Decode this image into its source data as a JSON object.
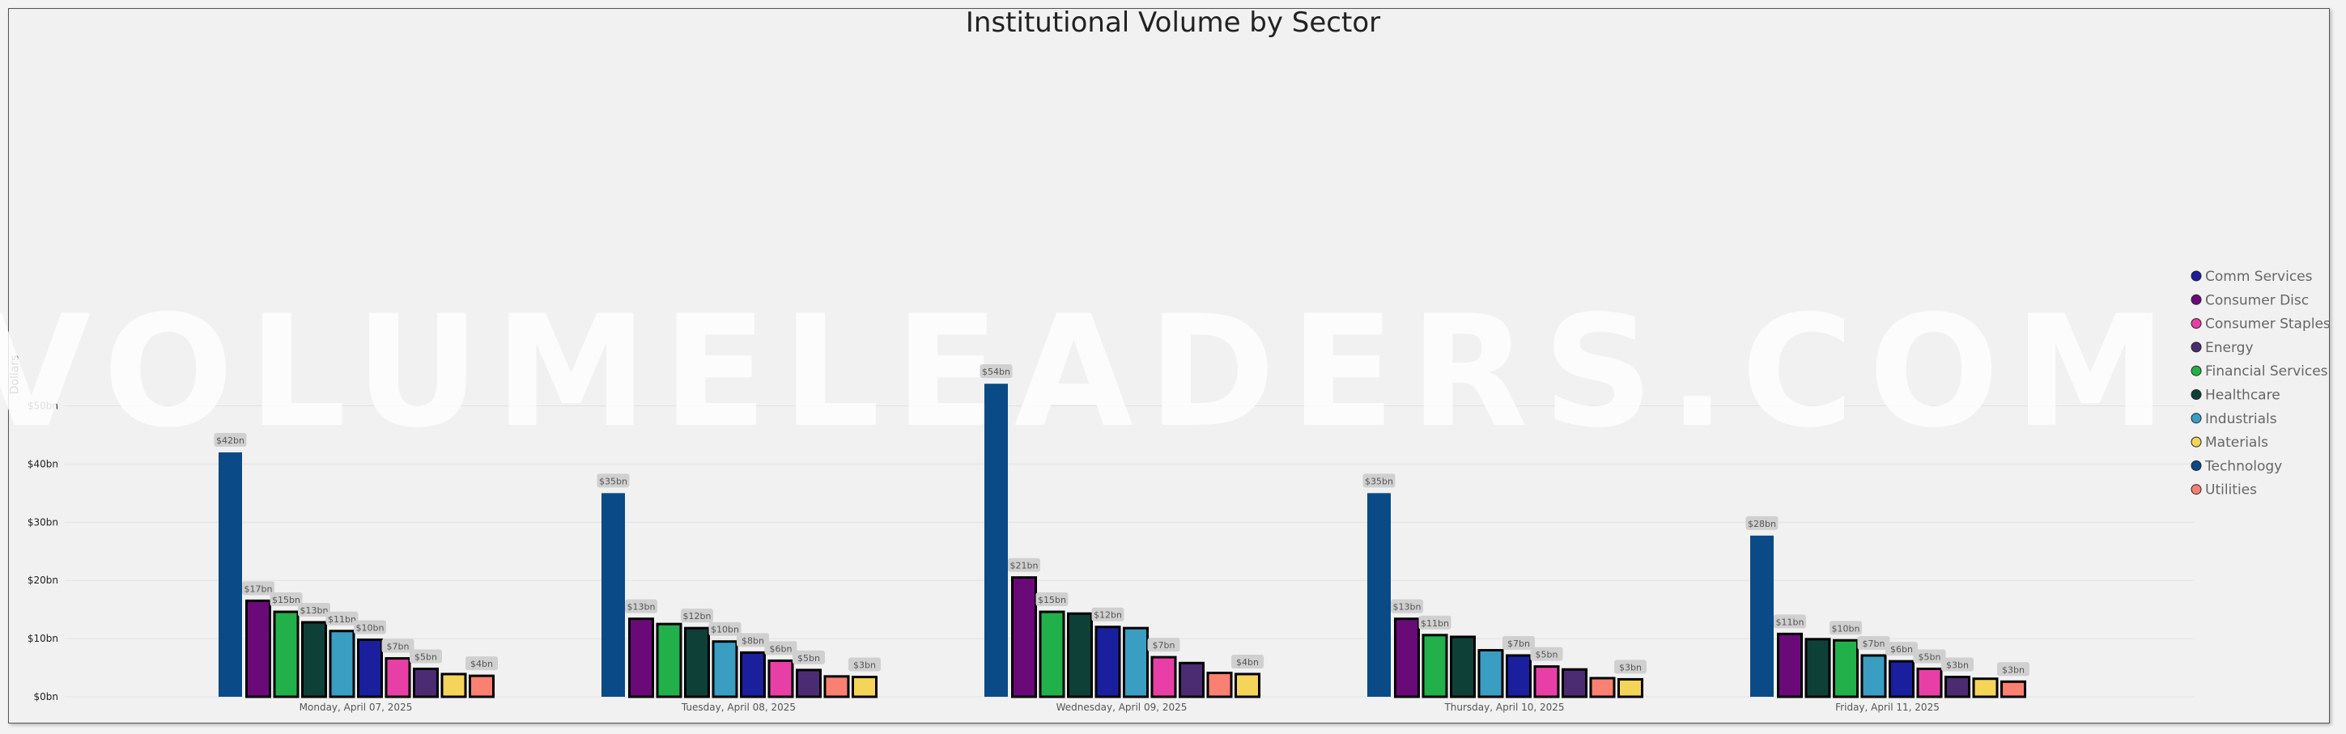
{
  "chart_data": {
    "type": "bar",
    "title": "Institutional Volume by Sector",
    "ylabel": "Dollars",
    "xlabel": "",
    "ylim": [
      0,
      55
    ],
    "yticks": [
      "$0bn",
      "$10bn",
      "$20bn",
      "$30bn",
      "$40bn",
      "$50bn"
    ],
    "categories": [
      "Monday, April 07, 2025",
      "Tuesday, April 08, 2025",
      "Wednesday, April 09, 2025",
      "Thursday, April 10, 2025",
      "Friday, April 11, 2025"
    ],
    "legend_position": "right",
    "watermark": "VOLUMELEADERS.COM",
    "days": [
      {
        "bars": [
          {
            "sector": "Technology",
            "value": 42,
            "label": "$42bn"
          },
          {
            "sector": "Consumer Disc",
            "value": 16.5,
            "label": "$17bn"
          },
          {
            "sector": "Financial Services",
            "value": 14.6,
            "label": "$15bn"
          },
          {
            "sector": "Healthcare",
            "value": 12.8,
            "label": "$13bn"
          },
          {
            "sector": "Industrials",
            "value": 11.3,
            "label": "$11bn"
          },
          {
            "sector": "Comm Services",
            "value": 9.8,
            "label": "$10bn"
          },
          {
            "sector": "Consumer Staples",
            "value": 6.6,
            "label": "$7bn"
          },
          {
            "sector": "Energy",
            "value": 4.8,
            "label": "$5bn"
          },
          {
            "sector": "Materials",
            "value": 3.9,
            "label": ""
          },
          {
            "sector": "Utilities",
            "value": 3.6,
            "label": "$4bn"
          }
        ]
      },
      {
        "bars": [
          {
            "sector": "Technology",
            "value": 35,
            "label": "$35bn"
          },
          {
            "sector": "Consumer Disc",
            "value": 13.4,
            "label": "$13bn"
          },
          {
            "sector": "Financial Services",
            "value": 12.5,
            "label": ""
          },
          {
            "sector": "Healthcare",
            "value": 11.8,
            "label": "$12bn"
          },
          {
            "sector": "Industrials",
            "value": 9.5,
            "label": "$10bn"
          },
          {
            "sector": "Comm Services",
            "value": 7.6,
            "label": "$8bn"
          },
          {
            "sector": "Consumer Staples",
            "value": 6.2,
            "label": "$6bn"
          },
          {
            "sector": "Energy",
            "value": 4.6,
            "label": "$5bn"
          },
          {
            "sector": "Utilities",
            "value": 3.5,
            "label": ""
          },
          {
            "sector": "Materials",
            "value": 3.4,
            "label": "$3bn"
          }
        ]
      },
      {
        "bars": [
          {
            "sector": "Technology",
            "value": 53.8,
            "label": "$54bn"
          },
          {
            "sector": "Consumer Disc",
            "value": 20.5,
            "label": "$21bn"
          },
          {
            "sector": "Financial Services",
            "value": 14.6,
            "label": "$15bn"
          },
          {
            "sector": "Healthcare",
            "value": 14.3,
            "label": ""
          },
          {
            "sector": "Comm Services",
            "value": 12,
            "label": "$12bn"
          },
          {
            "sector": "Industrials",
            "value": 11.8,
            "label": ""
          },
          {
            "sector": "Consumer Staples",
            "value": 6.8,
            "label": "$7bn"
          },
          {
            "sector": "Energy",
            "value": 5.8,
            "label": ""
          },
          {
            "sector": "Utilities",
            "value": 4.1,
            "label": ""
          },
          {
            "sector": "Materials",
            "value": 3.9,
            "label": "$4bn"
          }
        ]
      },
      {
        "bars": [
          {
            "sector": "Technology",
            "value": 35,
            "label": "$35bn"
          },
          {
            "sector": "Consumer Disc",
            "value": 13.4,
            "label": "$13bn"
          },
          {
            "sector": "Financial Services",
            "value": 10.6,
            "label": "$11bn"
          },
          {
            "sector": "Healthcare",
            "value": 10.3,
            "label": ""
          },
          {
            "sector": "Industrials",
            "value": 8,
            "label": ""
          },
          {
            "sector": "Comm Services",
            "value": 7.1,
            "label": "$7bn"
          },
          {
            "sector": "Consumer Staples",
            "value": 5.2,
            "label": "$5bn"
          },
          {
            "sector": "Energy",
            "value": 4.7,
            "label": ""
          },
          {
            "sector": "Utilities",
            "value": 3.2,
            "label": ""
          },
          {
            "sector": "Materials",
            "value": 3,
            "label": "$3bn"
          }
        ]
      },
      {
        "bars": [
          {
            "sector": "Technology",
            "value": 27.7,
            "label": "$28bn"
          },
          {
            "sector": "Consumer Disc",
            "value": 10.8,
            "label": "$11bn"
          },
          {
            "sector": "Healthcare",
            "value": 9.9,
            "label": ""
          },
          {
            "sector": "Financial Services",
            "value": 9.7,
            "label": "$10bn"
          },
          {
            "sector": "Industrials",
            "value": 7.1,
            "label": "$7bn"
          },
          {
            "sector": "Comm Services",
            "value": 6.1,
            "label": "$6bn"
          },
          {
            "sector": "Consumer Staples",
            "value": 4.8,
            "label": "$5bn"
          },
          {
            "sector": "Energy",
            "value": 3.4,
            "label": "$3bn"
          },
          {
            "sector": "Materials",
            "value": 3.1,
            "label": ""
          },
          {
            "sector": "Utilities",
            "value": 2.6,
            "label": "$3bn"
          }
        ]
      }
    ],
    "legend": [
      {
        "name": "Comm Services",
        "color": "#1a1f9e"
      },
      {
        "name": "Consumer Disc",
        "color": "#6a0a78"
      },
      {
        "name": "Consumer Staples",
        "color": "#e83fa6"
      },
      {
        "name": "Energy",
        "color": "#4b2c73"
      },
      {
        "name": "Financial Services",
        "color": "#22b04a"
      },
      {
        "name": "Healthcare",
        "color": "#0f4038"
      },
      {
        "name": "Industrials",
        "color": "#3a9ec2"
      },
      {
        "name": "Materials",
        "color": "#f5d45a"
      },
      {
        "name": "Technology",
        "color": "#0a4a86"
      },
      {
        "name": "Utilities",
        "color": "#fa8072"
      }
    ]
  }
}
